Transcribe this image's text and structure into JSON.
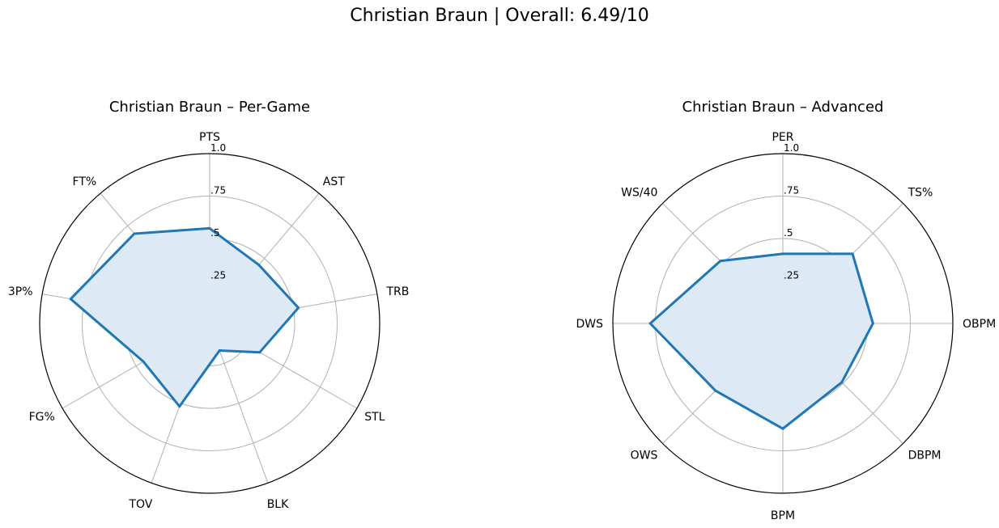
{
  "figure": {
    "title": "Christian Braun | Overall: 6.49/10"
  },
  "chart_data": [
    {
      "type": "radar",
      "title": "Christian Braun – Per-Game",
      "axes": [
        "PTS",
        "AST",
        "TRB",
        "STL",
        "BLK",
        "TOV",
        "FG%",
        "3P%",
        "FT%"
      ],
      "values": [
        0.56,
        0.45,
        0.53,
        0.34,
        0.17,
        0.52,
        0.45,
        0.83,
        0.69
      ],
      "radial_ticks": [
        0.25,
        0.5,
        0.75,
        1.0
      ],
      "radial_tick_labels": [
        ".25",
        ".5",
        ".75",
        "1.0"
      ],
      "rlim": [
        0,
        1
      ],
      "grid": true,
      "line_color": "#1f77b4",
      "fill_color": "#dde9f4"
    },
    {
      "type": "radar",
      "title": "Christian Braun – Advanced",
      "axes": [
        "PER",
        "TS%",
        "OBPM",
        "DBPM",
        "BPM",
        "OWS",
        "DWS",
        "WS/40"
      ],
      "values": [
        0.41,
        0.58,
        0.53,
        0.49,
        0.62,
        0.56,
        0.78,
        0.52
      ],
      "radial_ticks": [
        0.25,
        0.5,
        0.75,
        1.0
      ],
      "radial_tick_labels": [
        ".25",
        ".5",
        ".75",
        "1.0"
      ],
      "rlim": [
        0,
        1
      ],
      "grid": true,
      "line_color": "#1f77b4",
      "fill_color": "#dde9f4"
    }
  ]
}
